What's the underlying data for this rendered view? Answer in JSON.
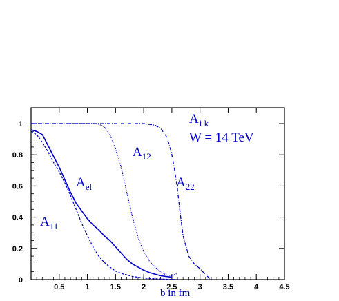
{
  "chart_data": {
    "type": "line",
    "xlabel": "b in fm",
    "ylabel": "",
    "xlim": [
      0,
      4.5
    ],
    "ylim": [
      0,
      1.0
    ],
    "xticks": [
      "0.5",
      "1",
      "1.5",
      "2",
      "2.5",
      "3",
      "3.5",
      "4",
      "4.5"
    ],
    "yticks": [
      "0",
      "0.2",
      "0.4",
      "0.6",
      "0.8",
      "1"
    ],
    "grid": false,
    "line_color": "#0000cc",
    "annotations": {
      "legend_title": {
        "base": "A",
        "sub": "i k"
      },
      "energy": "W = 14 TeV",
      "a11": {
        "base": "A",
        "sub": "11"
      },
      "ael": {
        "base": "A",
        "sub": "el"
      },
      "a12": {
        "base": "A",
        "sub": "12"
      },
      "a22": {
        "base": "A",
        "sub": "22"
      }
    },
    "series": [
      {
        "style": "solid",
        "x": [
          0.0,
          0.1,
          0.2,
          0.3,
          0.4,
          0.5,
          0.6,
          0.7,
          0.8,
          0.9,
          1.0,
          1.1,
          1.2,
          1.3,
          1.4,
          1.5,
          1.6,
          1.7,
          1.8,
          1.9,
          2.0,
          2.1,
          2.2,
          2.3,
          2.4,
          2.5
        ],
        "y": [
          0.96,
          0.95,
          0.93,
          0.86,
          0.79,
          0.72,
          0.64,
          0.56,
          0.49,
          0.44,
          0.39,
          0.35,
          0.32,
          0.28,
          0.25,
          0.21,
          0.17,
          0.13,
          0.1,
          0.08,
          0.06,
          0.045,
          0.035,
          0.025,
          0.02,
          0.015
        ]
      },
      {
        "style": "dashed",
        "x": [
          0.0,
          0.1,
          0.2,
          0.3,
          0.4,
          0.5,
          0.6,
          0.7,
          0.8,
          0.9,
          1.0,
          1.1,
          1.2,
          1.3,
          1.4,
          1.5,
          1.6,
          1.7,
          1.8,
          1.9,
          2.0,
          2.2,
          2.4,
          2.6
        ],
        "y": [
          0.95,
          0.93,
          0.88,
          0.82,
          0.75,
          0.69,
          0.62,
          0.54,
          0.45,
          0.36,
          0.28,
          0.21,
          0.15,
          0.11,
          0.08,
          0.055,
          0.04,
          0.03,
          0.02,
          0.015,
          0.01,
          0.005,
          0.002,
          0.0
        ]
      },
      {
        "style": "dotted",
        "x": [
          0.0,
          0.5,
          1.0,
          1.1,
          1.2,
          1.3,
          1.4,
          1.5,
          1.6,
          1.7,
          1.8,
          1.9,
          2.0,
          2.1,
          2.2,
          2.3,
          2.4,
          2.5,
          2.6
        ],
        "y": [
          1.0,
          1.0,
          1.0,
          1.0,
          0.995,
          0.98,
          0.93,
          0.84,
          0.72,
          0.56,
          0.4,
          0.27,
          0.18,
          0.12,
          0.08,
          0.05,
          0.03,
          0.025,
          0.04
        ]
      },
      {
        "style": "dashdot",
        "x": [
          0.0,
          1.0,
          2.0,
          2.2,
          2.3,
          2.4,
          2.45,
          2.5,
          2.55,
          2.6,
          2.65,
          2.7,
          2.8,
          2.9,
          3.0,
          3.1,
          3.2
        ],
        "y": [
          1.0,
          1.0,
          1.0,
          0.99,
          0.97,
          0.92,
          0.87,
          0.8,
          0.7,
          0.58,
          0.42,
          0.28,
          0.15,
          0.1,
          0.07,
          0.03,
          0.0
        ]
      }
    ]
  }
}
